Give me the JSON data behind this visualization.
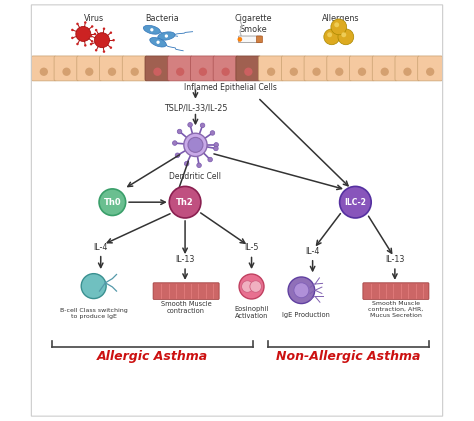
{
  "background_color": "#ffffff",
  "fig_width": 4.74,
  "fig_height": 4.21,
  "labels": {
    "virus": "Virus",
    "bacteria": "Bacteria",
    "cigarette_smoke": "Cigarette\nSmoke",
    "allergens": "Allergens",
    "inflamed": "Inflamed Epithelial Cells",
    "tslp": "TSLP/IL-33/IL-25",
    "dendritic": "Dendritic Cell",
    "th0": "Th0",
    "th2": "Th2",
    "ilc2": "ILC-2",
    "il4_left": "IL-4",
    "il13_left": "IL-13",
    "il5": "IL-5",
    "il4_right": "IL-4",
    "il13_right": "IL-13",
    "bcell": "B-cell Class switching\nto produce IgE",
    "smooth_muscle_left": "Smooth Muscle\ncontraction",
    "eosinophil_act": "Eosinophil\nActivation",
    "ige": "IgE Production",
    "smooth_muscle_right": "Smooth Muscle\ncontraction, AHR,\nMucus Secretion",
    "allergic": "Allergic Asthma",
    "non_allergic": "Non-Allergic Asthma"
  },
  "colors": {
    "background": "#ffffff",
    "epithelial_normal": "#f5c9a0",
    "epithelial_inflamed": "#d48080",
    "epithelial_inflamed_dark": "#b06060",
    "dendritic_cell": "#9b7abf",
    "dendritic_inner": "#c8aae8",
    "th0_cell": "#6abf90",
    "th2_cell": "#c05080",
    "ilc2_cell": "#8855bb",
    "bcell_cell": "#70c0c0",
    "smooth_muscle": "#cc6666",
    "eosinophil_cell": "#e87090",
    "eosinophil_inner": "#f0b0c0",
    "ige_cell": "#9070b8",
    "virus_color": "#cc2222",
    "bacteria_color": "#5599cc",
    "allergen_color": "#ddaa20",
    "arrow_color": "#333333",
    "allergic_text": "#cc1111",
    "non_allergic_text": "#cc1111",
    "bracket_color": "#444444",
    "label_color": "#333333",
    "border_color": "#cccccc"
  }
}
